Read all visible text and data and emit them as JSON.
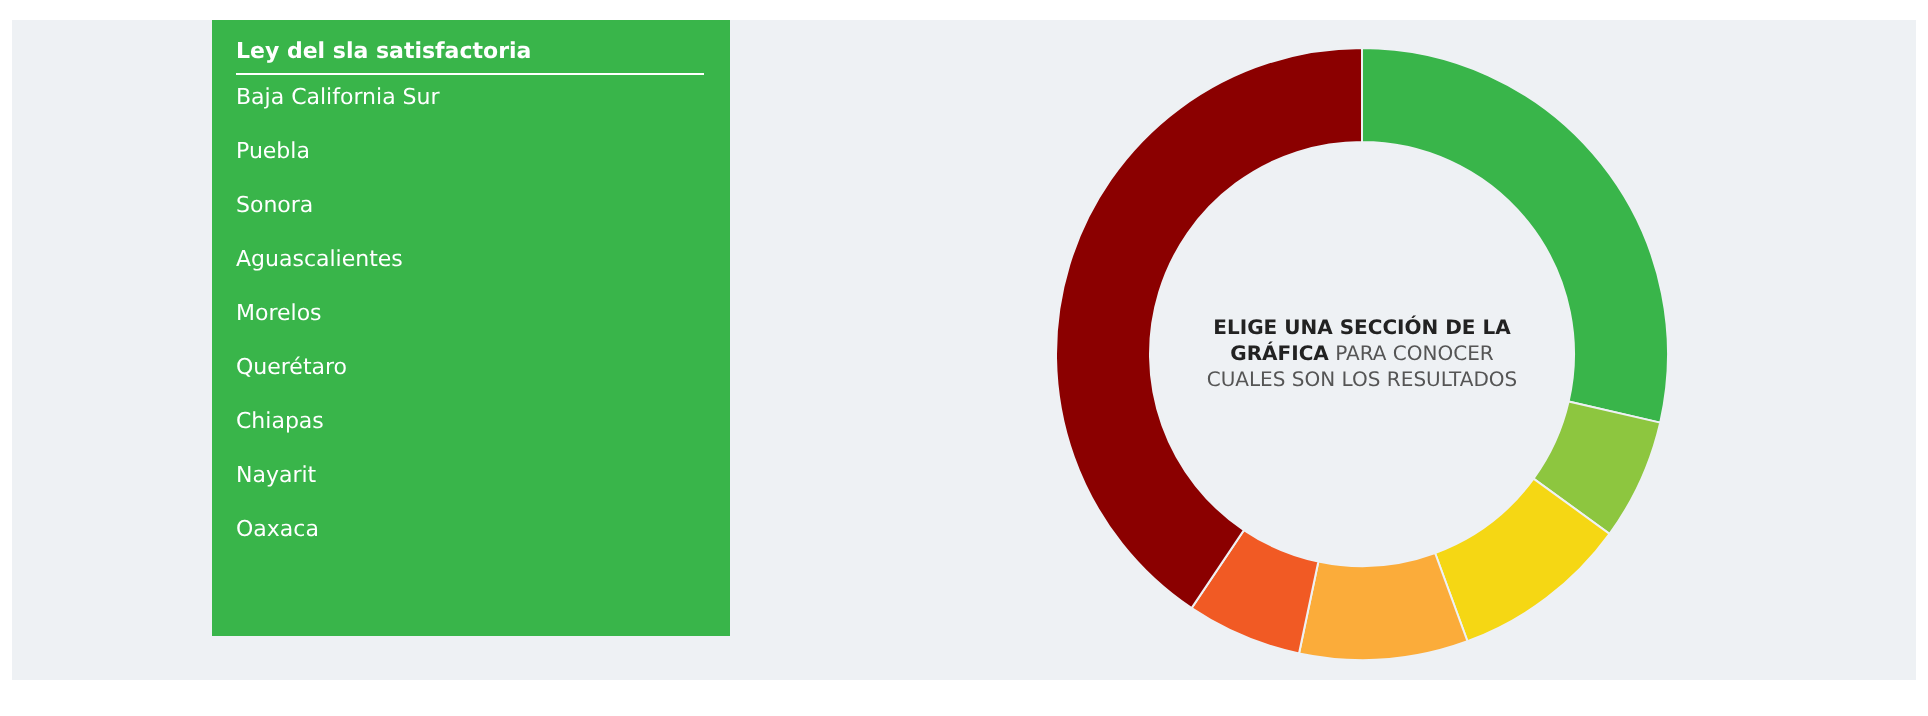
{
  "chart_data": [
    {
      "type": "other",
      "title": "Ley del sla satisfactoria",
      "annotations": [
        "Baja California Sur",
        "Puebla",
        "Sonora",
        "Aguascalientes",
        "Morelos",
        "Querétaro",
        "Chiapas",
        "Nayarit",
        "Oaxaca"
      ]
    },
    {
      "type": "donut",
      "categories": [
        null,
        null,
        null,
        null,
        null,
        null
      ],
      "values": [
        28.6,
        6.4,
        9.4,
        8.9,
        6.1,
        40.6
      ],
      "colors": [
        "#39b54a",
        "#8dc63f",
        "#f5d714",
        "#fbac3a",
        "#f15a24",
        "#8b0000"
      ],
      "annotations": [
        "ELIGE UNA SECCIÓN DE LA GRÁFICA",
        "PARA CONOCER CUALES SON LOS RESULTADOS"
      ]
    }
  ]
}
